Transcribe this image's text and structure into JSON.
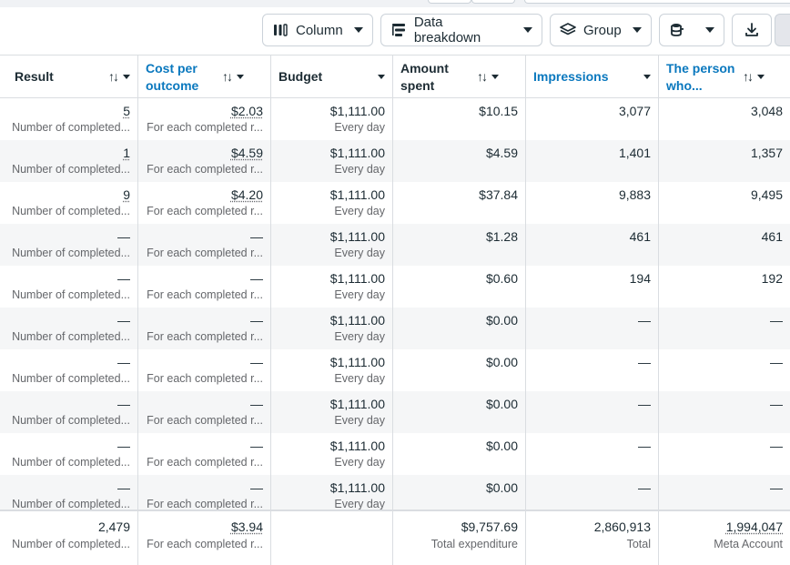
{
  "toolbar": {
    "column_label": "Column",
    "breakdown_label": "Data breakdown",
    "group_label": "Group"
  },
  "columns": [
    {
      "label": "Result",
      "sort_icon": "↑↓"
    },
    {
      "label": "Cost per outcome",
      "sort_icon": "↑↓"
    },
    {
      "label": "Budget",
      "sort_icon": "↑↓"
    },
    {
      "label": "Amount spent",
      "sort_icon": "↑↓"
    },
    {
      "label": "Impressions",
      "sort_icon": "↑↓"
    },
    {
      "label": "The person who...",
      "sort_icon": "↑↓"
    }
  ],
  "rows": [
    {
      "result": "5",
      "result_sub": "Number of completed...",
      "cost": "$2.03",
      "cost_sub": "For each completed r...",
      "budget": "$1,111.00",
      "budget_sub": "Every day",
      "spent": "$10.15",
      "impressions": "3,077",
      "reach": "3,048"
    },
    {
      "result": "1",
      "result_sub": "Number of completed...",
      "cost": "$4.59",
      "cost_sub": "For each completed r...",
      "budget": "$1,111.00",
      "budget_sub": "Every day",
      "spent": "$4.59",
      "impressions": "1,401",
      "reach": "1,357"
    },
    {
      "result": "9",
      "result_sub": "Number of completed...",
      "cost": "$4.20",
      "cost_sub": "For each completed r...",
      "budget": "$1,111.00",
      "budget_sub": "Every day",
      "spent": "$37.84",
      "impressions": "9,883",
      "reach": "9,495"
    },
    {
      "result": "—",
      "result_sub": "Number of completed...",
      "cost": "—",
      "cost_sub": "For each completed r...",
      "budget": "$1,111.00",
      "budget_sub": "Every day",
      "spent": "$1.28",
      "impressions": "461",
      "reach": "461"
    },
    {
      "result": "—",
      "result_sub": "Number of completed...",
      "cost": "—",
      "cost_sub": "For each completed r...",
      "budget": "$1,111.00",
      "budget_sub": "Every day",
      "spent": "$0.60",
      "impressions": "194",
      "reach": "192"
    },
    {
      "result": "—",
      "result_sub": "Number of completed...",
      "cost": "—",
      "cost_sub": "For each completed r...",
      "budget": "$1,111.00",
      "budget_sub": "Every day",
      "spent": "$0.00",
      "impressions": "—",
      "reach": "—"
    },
    {
      "result": "—",
      "result_sub": "Number of completed...",
      "cost": "—",
      "cost_sub": "For each completed r...",
      "budget": "$1,111.00",
      "budget_sub": "Every day",
      "spent": "$0.00",
      "impressions": "—",
      "reach": "—"
    },
    {
      "result": "—",
      "result_sub": "Number of completed...",
      "cost": "—",
      "cost_sub": "For each completed r...",
      "budget": "$1,111.00",
      "budget_sub": "Every day",
      "spent": "$0.00",
      "impressions": "—",
      "reach": "—"
    },
    {
      "result": "—",
      "result_sub": "Number of completed...",
      "cost": "—",
      "cost_sub": "For each completed r...",
      "budget": "$1,111.00",
      "budget_sub": "Every day",
      "spent": "$0.00",
      "impressions": "—",
      "reach": "—"
    },
    {
      "result": "—",
      "result_sub": "Number of completed...",
      "cost": "—",
      "cost_sub": "For each completed r...",
      "budget": "$1,111.00",
      "budget_sub": "Every day",
      "spent": "$0.00",
      "impressions": "—",
      "reach": "—"
    }
  ],
  "totals": {
    "result": "2,479",
    "result_sub": "Number of completed...",
    "cost": "$3.94",
    "cost_sub": "For each completed r...",
    "spent": "$9,757.69",
    "spent_sub": "Total expenditure",
    "impressions": "2,860,913",
    "impressions_sub": "Total",
    "reach": "1,994,047",
    "reach_sub": "Meta Account"
  },
  "icons": {
    "column": "columns-icon",
    "breakdown": "breakdown-icon",
    "group": "layers-icon",
    "database": "database-icon",
    "download": "download-icon"
  },
  "colors": {
    "accent": "#0a78be",
    "border": "#dadde1",
    "alt_row": "#f5f6f7"
  }
}
